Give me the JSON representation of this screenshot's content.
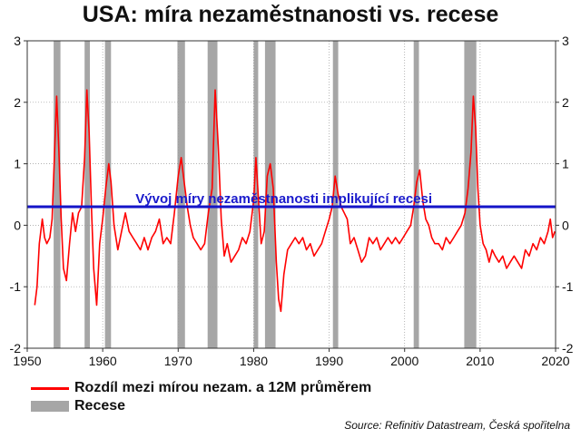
{
  "title": "USA: míra nezaměstnanosti vs. recese",
  "source": "Source: Refinitiv Datastream, Česká spořitelna",
  "colors": {
    "series": "#ff0000",
    "recession": "#a6a6a6",
    "threshold": "#1414c8",
    "annotation": "#1a1acc"
  },
  "chart_data": {
    "type": "line",
    "title": "USA: míra nezaměstnanosti vs. recese",
    "xlim": [
      1950,
      2020
    ],
    "ylim": [
      -2,
      3
    ],
    "x_ticks": [
      1950,
      1960,
      1970,
      1980,
      1990,
      2000,
      2010,
      2020
    ],
    "y_ticks": [
      -2,
      -1,
      0,
      1,
      2,
      3
    ],
    "x_tick_labels": [
      "1950",
      "1960",
      "1970",
      "1980",
      "1990",
      "2000",
      "2010",
      "2020"
    ],
    "y_tick_labels": [
      "-2",
      "-1",
      "0",
      "1",
      "2",
      "3"
    ],
    "grid": true,
    "legend_position": "bottom-left",
    "legend": [
      "Rozdíl mezi mírou nezam. a 12M průměrem",
      "Recese"
    ],
    "threshold": {
      "value": 0.3,
      "label": "Vývoj míry nezaměstnanosti implikující recesi"
    },
    "recessions": [
      [
        1953.5,
        1954.4
      ],
      [
        1957.6,
        1958.3
      ],
      [
        1960.3,
        1961.1
      ],
      [
        1969.9,
        1970.9
      ],
      [
        1973.9,
        1975.2
      ],
      [
        1980.0,
        1980.6
      ],
      [
        1981.5,
        1982.9
      ],
      [
        1990.5,
        1991.2
      ],
      [
        2001.2,
        2001.9
      ],
      [
        2007.9,
        2009.5
      ]
    ],
    "series": [
      {
        "name": "Rozdíl mezi mírou nezam. a 12M průměrem",
        "x": [
          1951.0,
          1951.3,
          1951.6,
          1952.0,
          1952.3,
          1952.6,
          1953.0,
          1953.3,
          1953.6,
          1953.9,
          1954.2,
          1954.5,
          1954.8,
          1955.2,
          1955.6,
          1956.0,
          1956.4,
          1956.8,
          1957.2,
          1957.6,
          1957.9,
          1958.2,
          1958.5,
          1958.8,
          1959.2,
          1959.6,
          1960.0,
          1960.4,
          1960.8,
          1961.1,
          1961.5,
          1962.0,
          1962.5,
          1963.0,
          1963.5,
          1964.0,
          1964.5,
          1965.0,
          1965.5,
          1966.0,
          1966.5,
          1967.0,
          1967.5,
          1968.0,
          1968.5,
          1969.0,
          1969.5,
          1970.0,
          1970.4,
          1970.8,
          1971.2,
          1971.6,
          1972.0,
          1972.5,
          1973.0,
          1973.5,
          1974.0,
          1974.5,
          1974.9,
          1975.3,
          1975.7,
          1976.1,
          1976.5,
          1977.0,
          1977.5,
          1978.0,
          1978.5,
          1979.0,
          1979.5,
          1980.0,
          1980.3,
          1980.6,
          1981.0,
          1981.4,
          1981.8,
          1982.2,
          1982.6,
          1983.0,
          1983.3,
          1983.6,
          1984.0,
          1984.5,
          1985.0,
          1985.5,
          1986.0,
          1986.5,
          1987.0,
          1987.5,
          1988.0,
          1988.5,
          1989.0,
          1989.5,
          1990.0,
          1990.4,
          1990.8,
          1991.2,
          1991.6,
          1992.0,
          1992.4,
          1992.8,
          1993.3,
          1993.8,
          1994.3,
          1994.8,
          1995.3,
          1995.8,
          1996.3,
          1996.8,
          1997.3,
          1997.8,
          1998.3,
          1998.8,
          1999.3,
          1999.8,
          2000.3,
          2000.8,
          2001.2,
          2001.6,
          2002.0,
          2002.4,
          2002.8,
          2003.2,
          2003.6,
          2004.0,
          2004.5,
          2005.0,
          2005.5,
          2006.0,
          2006.5,
          2007.0,
          2007.5,
          2008.0,
          2008.4,
          2008.8,
          2009.1,
          2009.4,
          2009.7,
          2010.0,
          2010.4,
          2010.8,
          2011.2,
          2011.6,
          2012.0,
          2012.5,
          2013.0,
          2013.5,
          2014.0,
          2014.5,
          2015.0,
          2015.5,
          2016.0,
          2016.5,
          2017.0,
          2017.5,
          2018.0,
          2018.5,
          2019.0,
          2019.3,
          2019.6,
          2019.9
        ],
        "values": [
          -1.3,
          -1.0,
          -0.3,
          0.1,
          -0.2,
          -0.3,
          -0.2,
          0.1,
          1.1,
          2.1,
          1.2,
          0.1,
          -0.7,
          -0.9,
          -0.3,
          0.2,
          -0.1,
          0.2,
          0.3,
          1.1,
          2.2,
          1.5,
          0.3,
          -0.7,
          -1.3,
          -0.3,
          0.1,
          0.6,
          1.0,
          0.7,
          0.0,
          -0.4,
          -0.1,
          0.2,
          -0.1,
          -0.2,
          -0.3,
          -0.4,
          -0.2,
          -0.4,
          -0.2,
          -0.1,
          0.1,
          -0.3,
          -0.2,
          -0.3,
          0.2,
          0.8,
          1.1,
          0.7,
          0.3,
          0.0,
          -0.2,
          -0.3,
          -0.4,
          -0.3,
          0.2,
          0.6,
          2.2,
          1.3,
          0.1,
          -0.5,
          -0.3,
          -0.6,
          -0.5,
          -0.4,
          -0.2,
          -0.3,
          -0.1,
          0.4,
          1.1,
          0.5,
          -0.3,
          -0.1,
          0.8,
          1.0,
          0.6,
          -0.6,
          -1.2,
          -1.4,
          -0.8,
          -0.4,
          -0.3,
          -0.2,
          -0.3,
          -0.2,
          -0.4,
          -0.3,
          -0.5,
          -0.4,
          -0.3,
          -0.1,
          0.1,
          0.3,
          0.8,
          0.5,
          0.3,
          0.2,
          0.1,
          -0.3,
          -0.2,
          -0.4,
          -0.6,
          -0.5,
          -0.2,
          -0.3,
          -0.2,
          -0.4,
          -0.3,
          -0.2,
          -0.3,
          -0.2,
          -0.3,
          -0.2,
          -0.1,
          0.0,
          0.3,
          0.7,
          0.9,
          0.4,
          0.1,
          0.0,
          -0.2,
          -0.3,
          -0.3,
          -0.4,
          -0.2,
          -0.3,
          -0.2,
          -0.1,
          0.0,
          0.2,
          0.6,
          1.2,
          2.1,
          1.6,
          0.6,
          0.0,
          -0.3,
          -0.4,
          -0.6,
          -0.4,
          -0.5,
          -0.6,
          -0.5,
          -0.7,
          -0.6,
          -0.5,
          -0.6,
          -0.7,
          -0.4,
          -0.5,
          -0.3,
          -0.4,
          -0.2,
          -0.3,
          -0.1,
          0.1,
          -0.2,
          -0.1
        ]
      }
    ]
  }
}
